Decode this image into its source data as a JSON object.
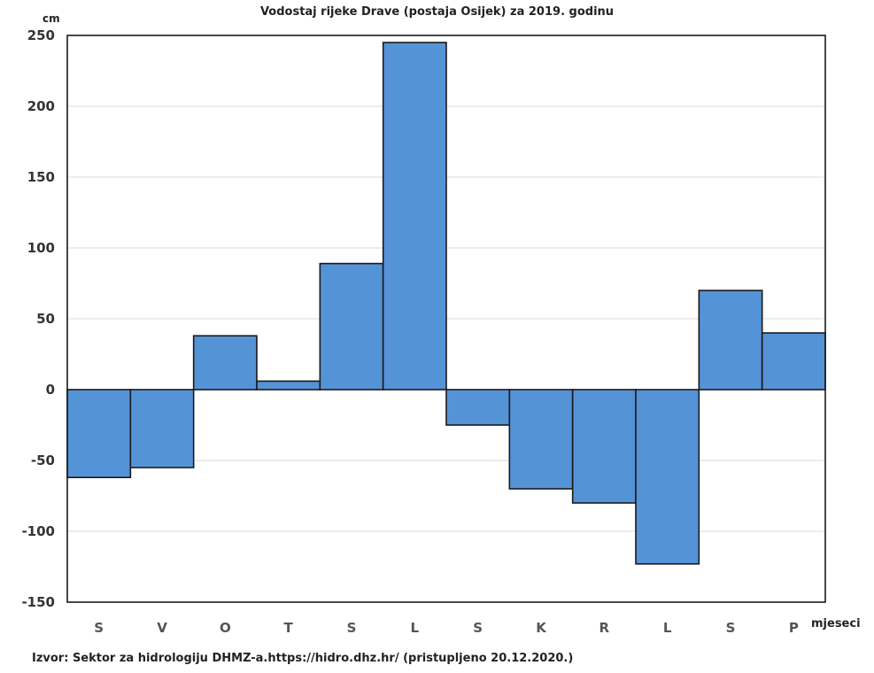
{
  "chart_data": {
    "type": "bar",
    "title": "Vodostaj rijeke Drave (postaja Osijek) za 2019. godinu",
    "ylabel": "cm",
    "xlabel": "mjeseci",
    "categories": [
      "S",
      "V",
      "O",
      "T",
      "S",
      "L",
      "S",
      "K",
      "R",
      "L",
      "S",
      "P"
    ],
    "values": [
      -62,
      -55,
      38,
      6,
      89,
      245,
      -25,
      -70,
      -80,
      -123,
      70,
      40
    ],
    "ylim": [
      -150,
      250
    ],
    "yticks": [
      250,
      200,
      150,
      100,
      50,
      0,
      -50,
      -100,
      -150
    ],
    "grid": true,
    "bar_color": "#5593d7",
    "source": "Izvor: Sektor za hidrologiju DHMZ-a.https://hidro.dhz.hr/ (pristupljeno 20.12.2020.)"
  }
}
